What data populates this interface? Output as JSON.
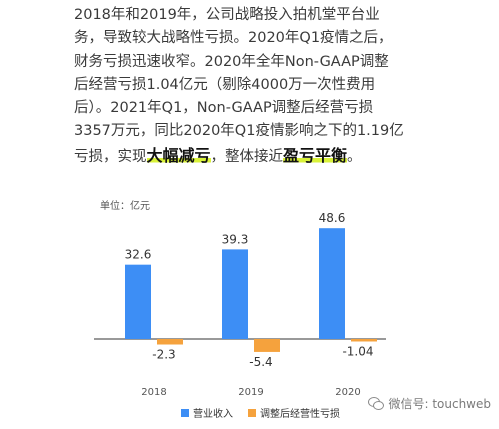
{
  "article": {
    "line1": "2018年和2019年，公司战略投入拍机堂平台业",
    "line2": "务，导致较大战略性亏损。2020年Q1疫情之后，",
    "line3": "财务亏损迅速收窄。2020年全年Non-GAAP调整",
    "line4": "后经营亏损1.04亿元（剔除4000万一次性费用",
    "line5": "后）。2021年Q1，Non-GAAP调整后经营亏损",
    "line6": "3357万元，同比2020年Q1疫情影响之下的1.19亿",
    "line7_pre": "亏损，实现",
    "line7_hl1": "大幅减亏",
    "line7_mid": "，整体接近",
    "line7_hl2": "盈亏平衡",
    "line7_post": "。"
  },
  "watermark": {
    "text": "微信号: touchweb"
  },
  "colors": {
    "revenue": "#3d8ef5",
    "loss": "#f5a23d",
    "highlight": "#d9f23a"
  },
  "chart_data": {
    "type": "bar",
    "unit_label": "单位：亿元",
    "categories": [
      "2018",
      "2019",
      "2020"
    ],
    "series": [
      {
        "name": "营业收入",
        "values": [
          32.6,
          39.3,
          48.6
        ],
        "labels": [
          "32.6",
          "39.3",
          "48.6"
        ]
      },
      {
        "name": "调整后经营性亏损",
        "values": [
          -2.3,
          -5.4,
          -1.04
        ],
        "labels": [
          "-2.3",
          "-5.4",
          "-1.04"
        ]
      }
    ],
    "ylim": [
      -7,
      52
    ],
    "legend_position": "bottom",
    "grid": false
  }
}
